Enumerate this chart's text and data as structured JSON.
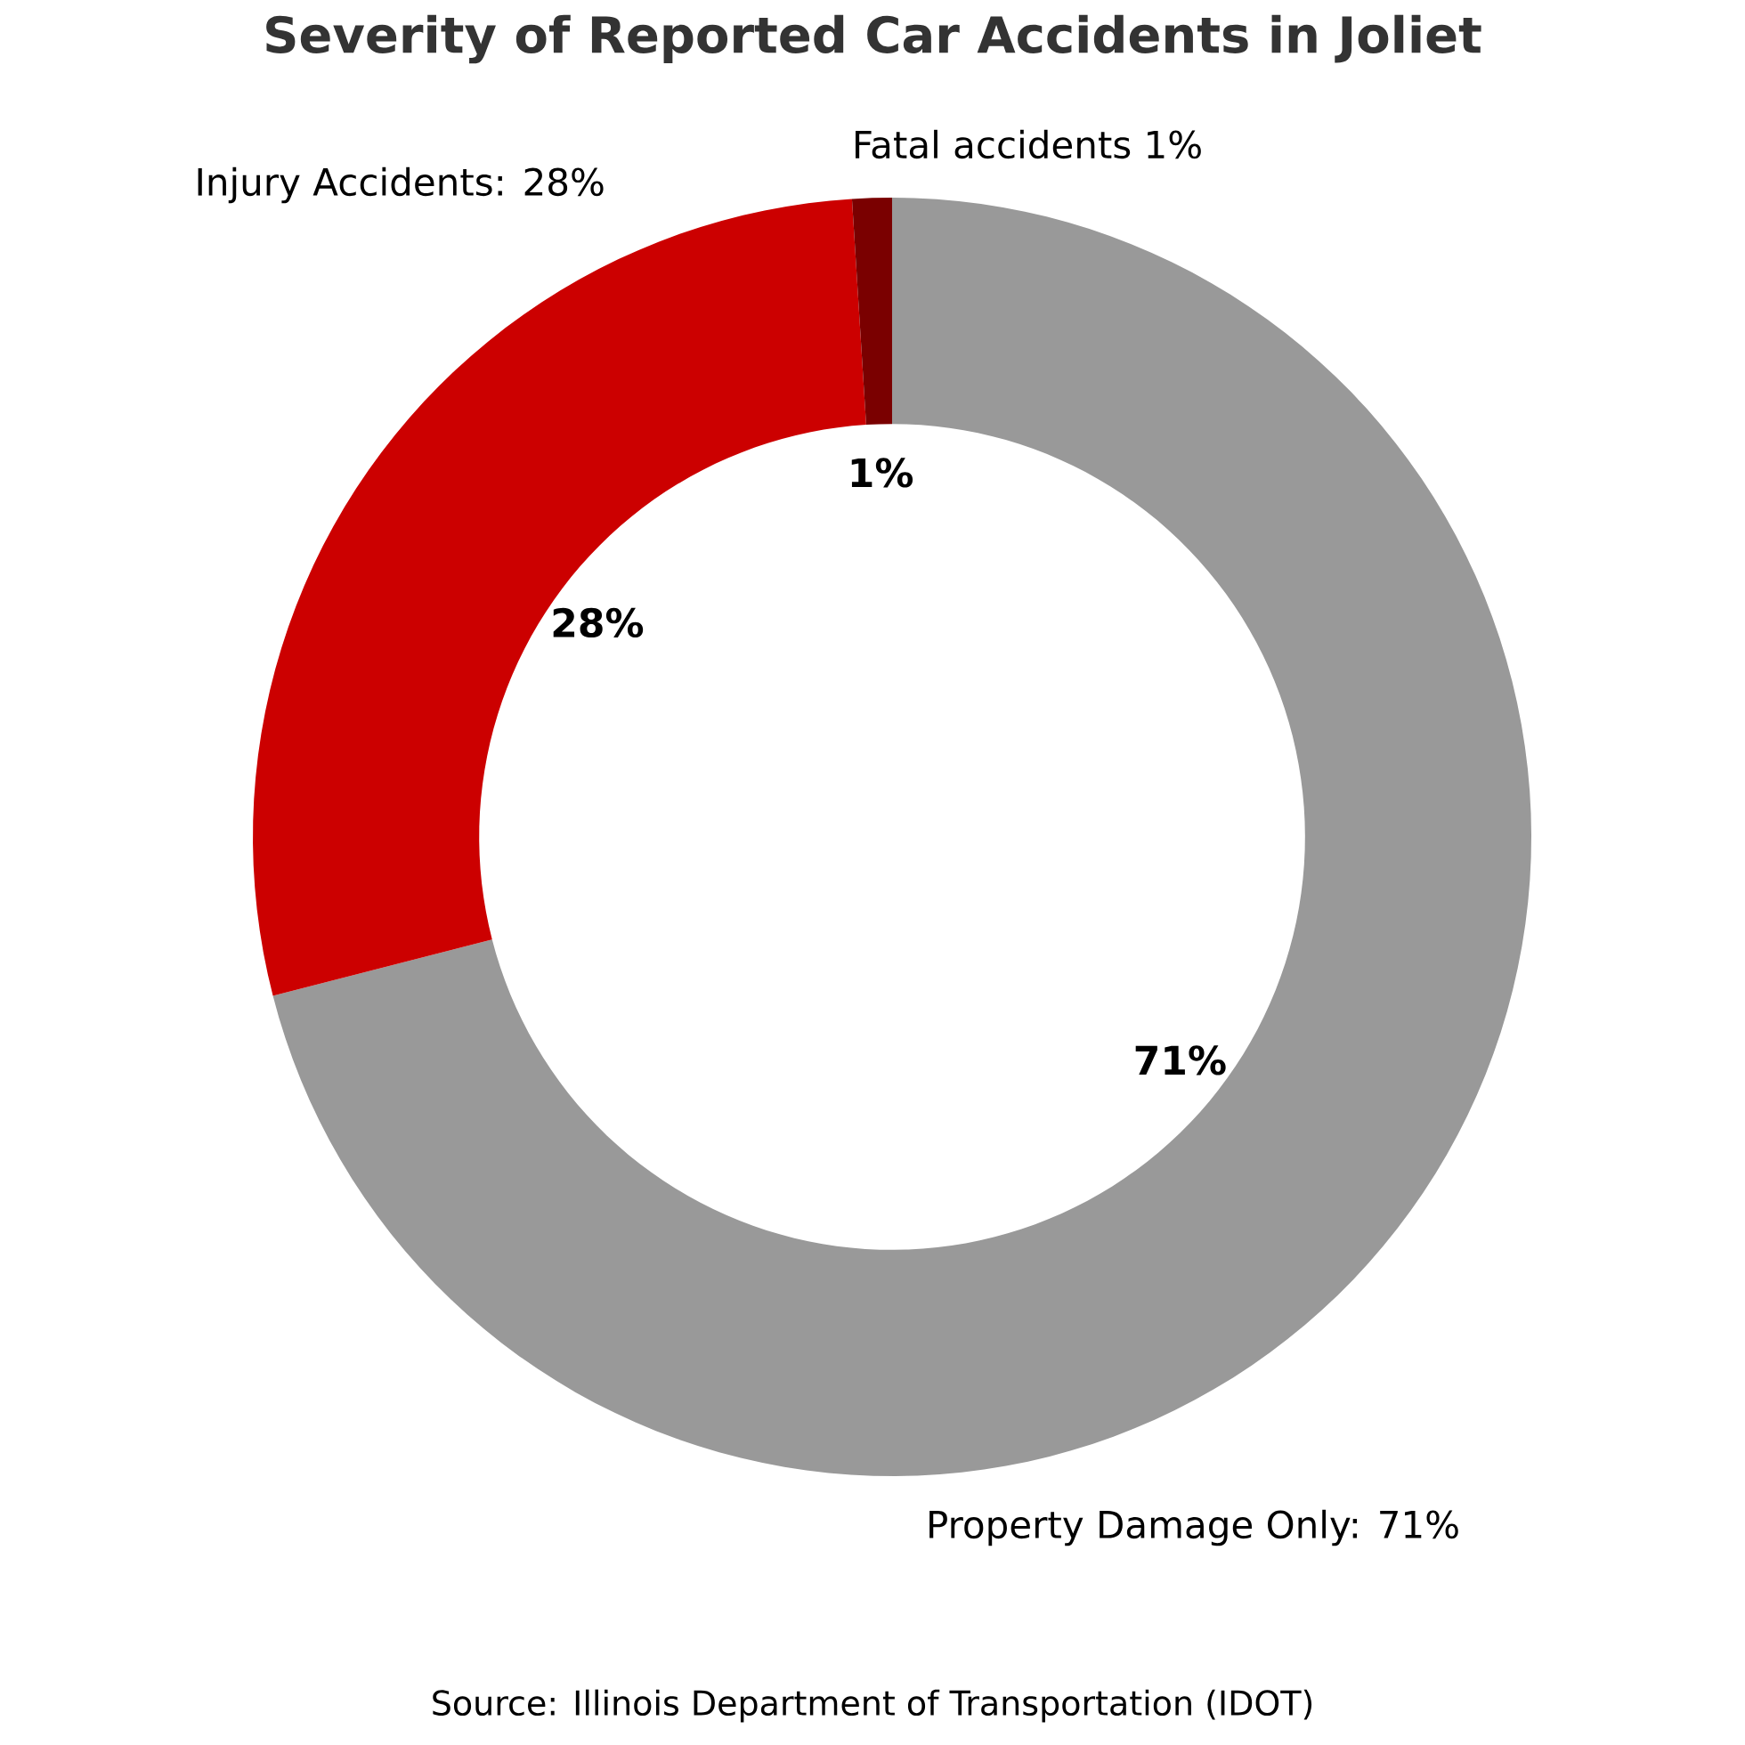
{
  "chart_data": {
    "type": "donut",
    "title": "Severity of Reported Car Accidents in Joliet",
    "categories": [
      "Property Damage Only: 71%",
      "Injury Accidents: 28%",
      "Fatal accidents 1%"
    ],
    "values": [
      71,
      28,
      1
    ],
    "colors": [
      "#999999",
      "#cc0000",
      "#7a0000"
    ],
    "value_labels": [
      "71%",
      "28%",
      "1%"
    ],
    "annotations": [
      "Source: Illinois Department of Transportation (IDOT)"
    ]
  }
}
